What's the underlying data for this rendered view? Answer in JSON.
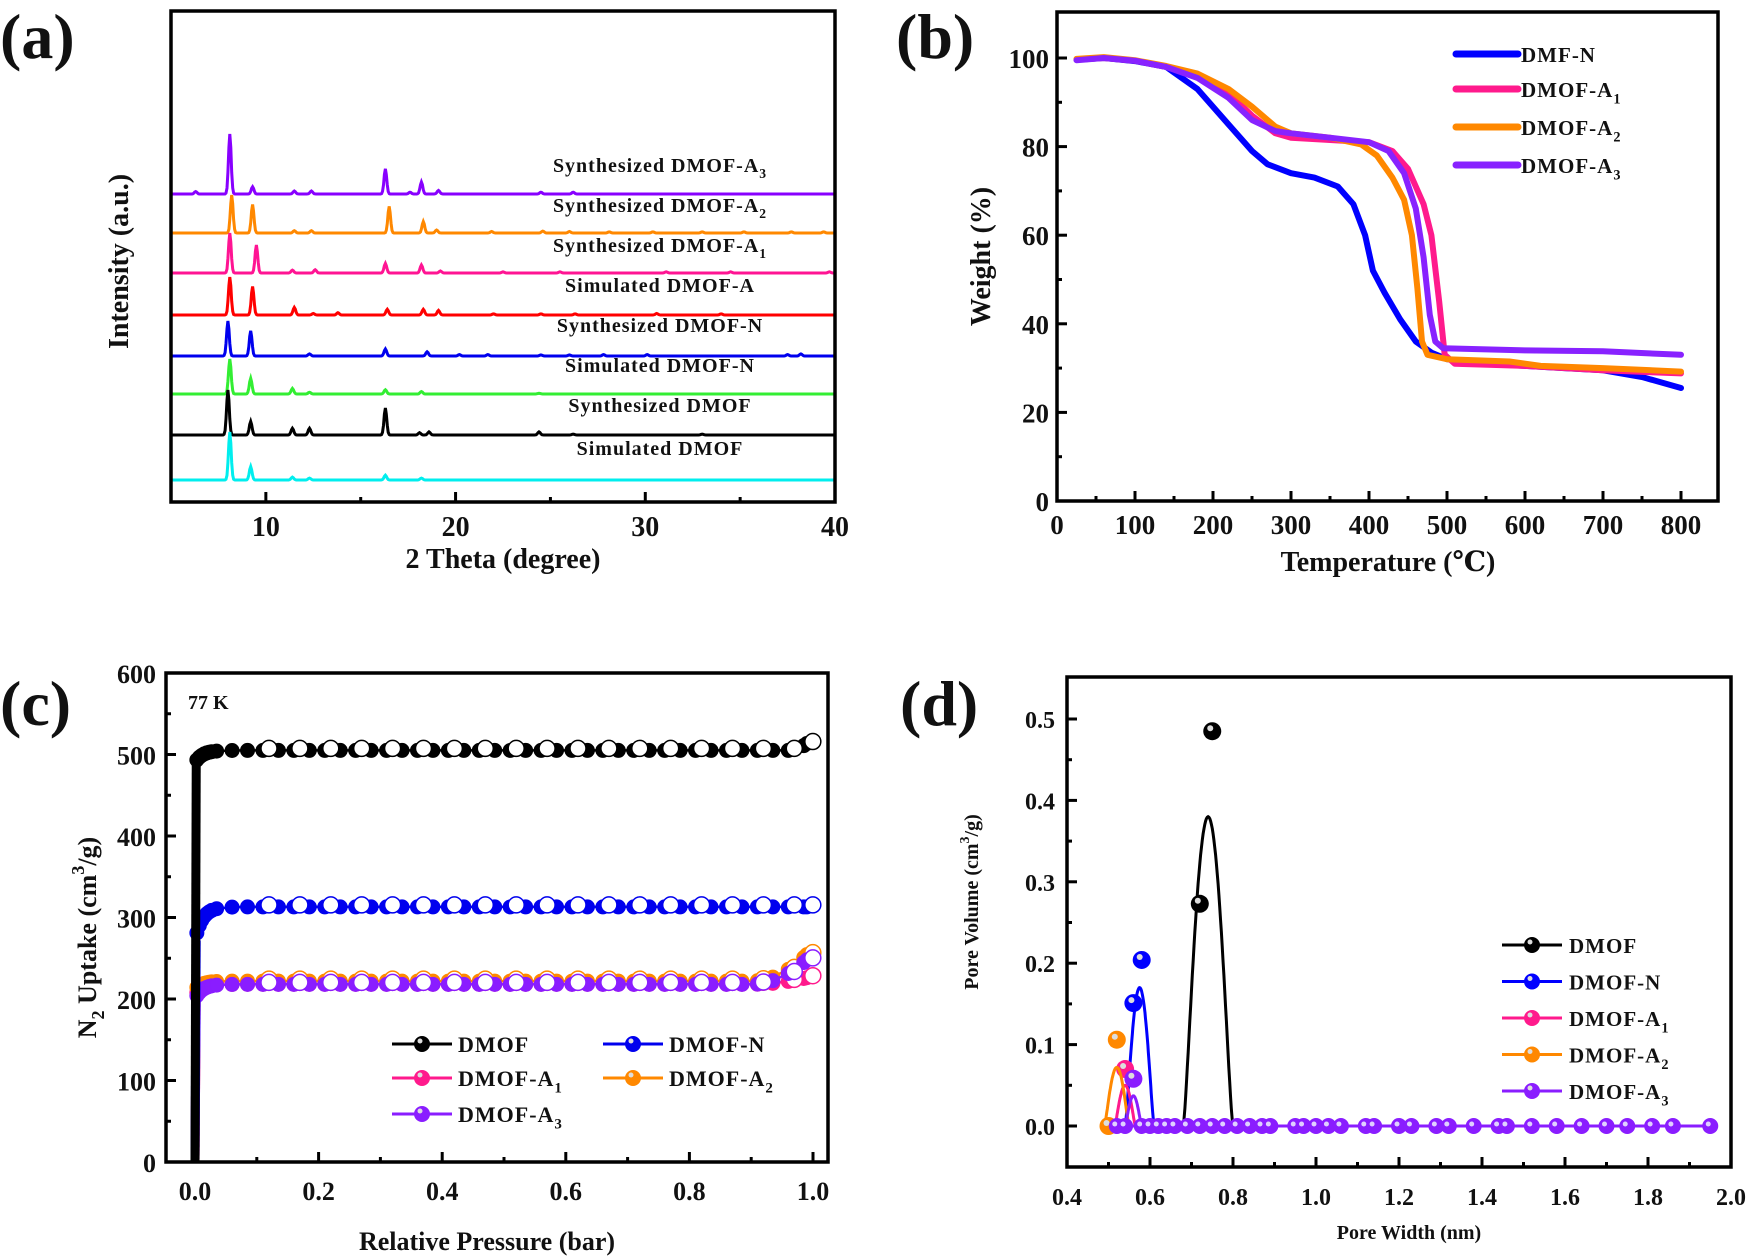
{
  "chart_data": [
    {
      "panel": "(a)",
      "type": "line",
      "title": "",
      "xlabel": "2 Theta (degree)",
      "ylabel": "Intensity (a.u.)",
      "xlim": [
        5,
        40
      ],
      "xticks": [
        10,
        20,
        30,
        40
      ],
      "grid": false,
      "series": [
        {
          "name": "Synthesized DMOF-A",
          "sub": "3",
          "color": "#8800ff",
          "peaks": [
            [
              6.3,
              0.04
            ],
            [
              8.1,
              1.0
            ],
            [
              9.3,
              0.12
            ],
            [
              11.5,
              0.05
            ],
            [
              12.4,
              0.05
            ],
            [
              16.3,
              0.42
            ],
            [
              17.6,
              0.03
            ],
            [
              18.2,
              0.2
            ],
            [
              19.1,
              0.06
            ],
            [
              24.5,
              0.03
            ],
            [
              26.2,
              0.03
            ]
          ]
        },
        {
          "name": "Synthesized DMOF-A",
          "sub": "2",
          "color": "#ff8800",
          "peaks": [
            [
              8.2,
              1.0
            ],
            [
              9.3,
              0.75
            ],
            [
              11.5,
              0.06
            ],
            [
              12.4,
              0.06
            ],
            [
              16.5,
              0.7
            ],
            [
              18.3,
              0.3
            ],
            [
              19.0,
              0.08
            ],
            [
              21.9,
              0.04
            ],
            [
              24.6,
              0.05
            ],
            [
              26.0,
              0.04
            ],
            [
              28.1,
              0.03
            ],
            [
              30.4,
              0.03
            ],
            [
              33.0,
              0.03
            ],
            [
              35.2,
              0.03
            ],
            [
              37.7,
              0.03
            ],
            [
              39.4,
              0.03
            ]
          ]
        },
        {
          "name": "Synthesized DMOF-A",
          "sub": "1",
          "color": "#ff1493",
          "peaks": [
            [
              8.1,
              1.0
            ],
            [
              9.5,
              0.7
            ],
            [
              11.4,
              0.07
            ],
            [
              12.6,
              0.08
            ],
            [
              16.3,
              0.24
            ],
            [
              18.2,
              0.2
            ],
            [
              19.2,
              0.05
            ],
            [
              22.5,
              0.03
            ],
            [
              25.5,
              0.03
            ],
            [
              31.1,
              0.03
            ],
            [
              34.5,
              0.03
            ],
            [
              39.7,
              0.03
            ]
          ]
        },
        {
          "name": "Simulated  DMOF-A",
          "sub": "",
          "color": "#ff0000",
          "peaks": [
            [
              8.1,
              1.0
            ],
            [
              9.3,
              0.75
            ],
            [
              11.5,
              0.2
            ],
            [
              12.5,
              0.04
            ],
            [
              13.8,
              0.06
            ],
            [
              16.4,
              0.15
            ],
            [
              18.3,
              0.15
            ],
            [
              19.1,
              0.12
            ],
            [
              22.0,
              0.03
            ],
            [
              24.5,
              0.03
            ],
            [
              26.3,
              0.03
            ],
            [
              30.6,
              0.04
            ],
            [
              34.0,
              0.03
            ]
          ]
        },
        {
          "name": "Synthesized DMOF-N",
          "sub": "",
          "color": "#0000ee",
          "peaks": [
            [
              8.0,
              1.0
            ],
            [
              9.2,
              0.72
            ],
            [
              12.3,
              0.06
            ],
            [
              16.3,
              0.2
            ],
            [
              18.5,
              0.12
            ],
            [
              20.2,
              0.04
            ],
            [
              21.7,
              0.04
            ],
            [
              24.5,
              0.03
            ],
            [
              26.0,
              0.03
            ],
            [
              27.8,
              0.04
            ],
            [
              30.1,
              0.04
            ],
            [
              37.5,
              0.04
            ],
            [
              38.2,
              0.06
            ]
          ]
        },
        {
          "name": "Simulated  DMOF-N",
          "sub": "",
          "color": "#33ee33",
          "peaks": [
            [
              8.1,
              1.0
            ],
            [
              9.2,
              0.45
            ],
            [
              11.4,
              0.16
            ],
            [
              12.3,
              0.05
            ],
            [
              16.3,
              0.12
            ],
            [
              18.2,
              0.07
            ],
            [
              24.4,
              0.02
            ]
          ]
        },
        {
          "name": "Synthesized DMOF",
          "sub": "",
          "color": "#000000",
          "peaks": [
            [
              8.0,
              1.0
            ],
            [
              9.2,
              0.3
            ],
            [
              11.4,
              0.15
            ],
            [
              12.3,
              0.15
            ],
            [
              16.3,
              0.6
            ],
            [
              18.1,
              0.05
            ],
            [
              18.6,
              0.07
            ],
            [
              24.4,
              0.07
            ],
            [
              26.2,
              0.02
            ],
            [
              33.0,
              0.02
            ]
          ]
        },
        {
          "name": "Simulated  DMOF",
          "sub": "",
          "color": "#00eeee",
          "peaks": [
            [
              8.1,
              1.0
            ],
            [
              9.2,
              0.28
            ],
            [
              11.4,
              0.06
            ],
            [
              12.3,
              0.04
            ],
            [
              16.3,
              0.1
            ],
            [
              18.2,
              0.04
            ]
          ]
        }
      ]
    },
    {
      "panel": "(b)",
      "type": "line",
      "title": "",
      "xlabel": "Temperature (℃)",
      "ylabel": "Weight (%)",
      "xlim": [
        0,
        850
      ],
      "ylim": [
        0,
        110
      ],
      "xticks": [
        0,
        100,
        200,
        300,
        400,
        500,
        600,
        700,
        800
      ],
      "yticks": [
        0,
        20,
        40,
        60,
        80,
        100
      ],
      "grid": false,
      "legend": "top-right",
      "series": [
        {
          "name": "DMF-N",
          "sub": "",
          "color": "#0000ff",
          "points": [
            [
              25,
              99.6
            ],
            [
              60,
              100
            ],
            [
              100,
              99.3
            ],
            [
              140,
              98
            ],
            [
              180,
              93
            ],
            [
              220,
              85
            ],
            [
              250,
              79
            ],
            [
              270,
              76
            ],
            [
              300,
              74
            ],
            [
              330,
              73
            ],
            [
              360,
              71
            ],
            [
              380,
              67
            ],
            [
              395,
              60
            ],
            [
              405,
              52
            ],
            [
              420,
              47
            ],
            [
              440,
              41
            ],
            [
              460,
              36
            ],
            [
              480,
              33.5
            ],
            [
              500,
              32
            ],
            [
              550,
              31
            ],
            [
              600,
              30.5
            ],
            [
              650,
              30
            ],
            [
              700,
              29.5
            ],
            [
              750,
              28
            ],
            [
              800,
              25.5
            ]
          ]
        },
        {
          "name": "DMOF-A",
          "sub": "1",
          "color": "#ff1a8c",
          "points": [
            [
              25,
              99.6
            ],
            [
              60,
              100
            ],
            [
              100,
              99.4
            ],
            [
              140,
              98
            ],
            [
              180,
              96
            ],
            [
              220,
              92
            ],
            [
              250,
              87
            ],
            [
              280,
              83
            ],
            [
              300,
              82
            ],
            [
              350,
              81.5
            ],
            [
              400,
              81
            ],
            [
              430,
              79
            ],
            [
              450,
              75
            ],
            [
              470,
              67
            ],
            [
              480,
              60
            ],
            [
              490,
              45
            ],
            [
              497,
              33
            ],
            [
              510,
              31
            ],
            [
              600,
              30.5
            ],
            [
              700,
              29.5
            ],
            [
              800,
              28.8
            ]
          ]
        },
        {
          "name": "DMOF-A",
          "sub": "2",
          "color": "#ff8800",
          "points": [
            [
              25,
              99.8
            ],
            [
              60,
              100.2
            ],
            [
              100,
              99.5
            ],
            [
              140,
              98.2
            ],
            [
              180,
              96.5
            ],
            [
              220,
              93
            ],
            [
              250,
              89
            ],
            [
              280,
              84.5
            ],
            [
              300,
              83
            ],
            [
              350,
              82
            ],
            [
              390,
              80.5
            ],
            [
              410,
              78
            ],
            [
              430,
              73
            ],
            [
              445,
              68
            ],
            [
              455,
              60
            ],
            [
              462,
              48
            ],
            [
              468,
              36
            ],
            [
              475,
              33
            ],
            [
              500,
              32
            ],
            [
              580,
              31.5
            ],
            [
              620,
              30.5
            ],
            [
              700,
              30
            ],
            [
              800,
              29.2
            ]
          ]
        },
        {
          "name": "DMOF-A",
          "sub": "3",
          "color": "#8822ff",
          "points": [
            [
              25,
              99.5
            ],
            [
              60,
              100
            ],
            [
              100,
              99.4
            ],
            [
              140,
              98
            ],
            [
              180,
              95.5
            ],
            [
              220,
              91
            ],
            [
              250,
              86
            ],
            [
              280,
              83.5
            ],
            [
              300,
              83
            ],
            [
              350,
              82
            ],
            [
              400,
              81
            ],
            [
              425,
              79
            ],
            [
              445,
              74
            ],
            [
              460,
              66
            ],
            [
              470,
              55
            ],
            [
              478,
              42
            ],
            [
              485,
              36
            ],
            [
              495,
              34.5
            ],
            [
              600,
              34
            ],
            [
              700,
              33.8
            ],
            [
              800,
              33
            ]
          ]
        }
      ]
    },
    {
      "panel": "(c)",
      "type": "scatter",
      "title": "",
      "annotation": "77 K",
      "xlabel": "Relative Pressure (bar)",
      "ylabel": "N2 Uptake (cm3/g)",
      "xlim": [
        -0.025,
        1.025
      ],
      "ylim": [
        0,
        600
      ],
      "xticks": [
        0.0,
        0.2,
        0.4,
        0.6,
        0.8,
        1.0
      ],
      "yticks": [
        0,
        100,
        200,
        300,
        400,
        500,
        600
      ],
      "grid": false,
      "legend": "bottom-right",
      "series": [
        {
          "name": "DMOF",
          "sub": "",
          "color": "#000000",
          "plateau": 505,
          "low": 490,
          "end": 520,
          "rise": 0.96
        },
        {
          "name": "DMOF-N",
          "sub": "",
          "color": "#0000ee",
          "plateau": 313,
          "low": 272,
          "end": 343,
          "rise": 0.99
        },
        {
          "name": "DMOF-A",
          "sub": "1",
          "color": "#ff1a8c",
          "plateau": 218,
          "low": 205,
          "end": 228,
          "rise": 0.9
        },
        {
          "name": "DMOF-A",
          "sub": "2",
          "color": "#ff8800",
          "plateau": 222,
          "low": 212,
          "end": 262,
          "rise": 0.9
        },
        {
          "name": "DMOF-A",
          "sub": "3",
          "color": "#8a1dff",
          "plateau": 218,
          "low": 200,
          "end": 255,
          "rise": 0.9
        }
      ]
    },
    {
      "panel": "(d)",
      "type": "line",
      "title": "",
      "xlabel": "Pore Width (nm)",
      "ylabel": "Pore Volume (cm3/g)",
      "xlim": [
        0.4,
        2.0
      ],
      "ylim": [
        -0.05,
        0.55
      ],
      "xticks": [
        0.4,
        0.6,
        0.8,
        1.0,
        1.2,
        1.4,
        1.6,
        1.8,
        2.0
      ],
      "yticks": [
        0.0,
        0.1,
        0.2,
        0.3,
        0.4,
        0.5
      ],
      "grid": false,
      "legend": "right",
      "series": [
        {
          "name": "DMOF",
          "sub": "",
          "color": "#000000",
          "curve_peak": [
            0.74,
            0.38
          ],
          "curve_width": 0.06,
          "points": [
            [
              0.72,
              0.273
            ],
            [
              0.75,
              0.485
            ]
          ]
        },
        {
          "name": "DMOF-N",
          "sub": "",
          "color": "#0000ff",
          "curve_peak": [
            0.575,
            0.17
          ],
          "curve_width": 0.035,
          "points": [
            [
              0.56,
              0.151
            ],
            [
              0.58,
              0.204
            ]
          ]
        },
        {
          "name": "DMOF-A",
          "sub": "1",
          "color": "#ff1a8c",
          "curve_peak": [
            0.54,
            0.05
          ],
          "curve_width": 0.025,
          "points": [
            [
              0.54,
              0.07
            ]
          ]
        },
        {
          "name": "DMOF-A",
          "sub": "2",
          "color": "#ff8800",
          "curve_peak": [
            0.52,
            0.072
          ],
          "curve_width": 0.03,
          "points": [
            [
              0.5,
              0.0
            ],
            [
              0.52,
              0.106
            ]
          ]
        },
        {
          "name": "DMOF-A",
          "sub": "3",
          "color": "#8a1dff",
          "curve_peak": [
            0.56,
            0.037
          ],
          "curve_width": 0.02,
          "points": [
            [
              0.56,
              0.058
            ]
          ]
        }
      ],
      "zero_points": [
        0.52,
        0.54,
        0.58,
        0.6,
        0.62,
        0.64,
        0.66,
        0.69,
        0.72,
        0.75,
        0.78,
        0.81,
        0.84,
        0.87,
        0.89,
        0.95,
        0.97,
        1.0,
        1.03,
        1.06,
        1.12,
        1.14,
        1.2,
        1.23,
        1.29,
        1.32,
        1.38,
        1.44,
        1.46,
        1.52,
        1.58,
        1.64,
        1.7,
        1.75,
        1.81,
        1.86,
        1.95
      ]
    }
  ],
  "panel_labels": [
    "(a)",
    "(b)",
    "(c)",
    "(d)"
  ]
}
